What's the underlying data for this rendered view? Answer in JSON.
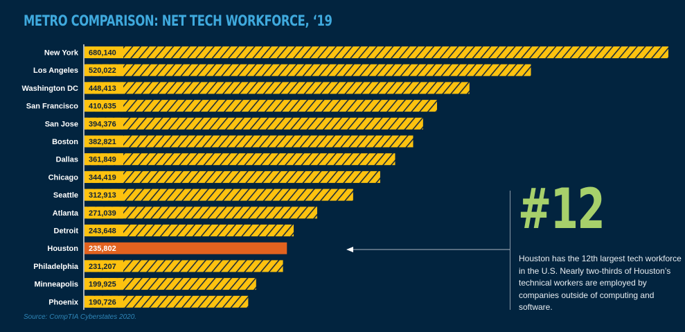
{
  "chart_data": {
    "type": "bar",
    "orientation": "horizontal",
    "title": "METRO COMPARISON: NET TECH WORKFORCE, ‘19",
    "xlabel": "",
    "ylabel": "",
    "categories": [
      "New York",
      "Los Angeles",
      "Washington DC",
      "San Francisco",
      "San Jose",
      "Boston",
      "Dallas",
      "Chicago",
      "Seattle",
      "Atlanta",
      "Detroit",
      "Houston",
      "Philadelphia",
      "Minneapolis",
      "Phoenix"
    ],
    "values": [
      680140,
      520022,
      448413,
      410635,
      394376,
      382821,
      361849,
      344419,
      312913,
      271039,
      243648,
      235802,
      231207,
      199925,
      190726
    ],
    "value_labels": [
      "680,140",
      "520,022",
      "448,413",
      "410,635",
      "394,376",
      "382,821",
      "361,849",
      "344,419",
      "312,913",
      "271,039",
      "243,648",
      "235,802",
      "231,207",
      "199,925",
      "190,726"
    ],
    "highlight": "Houston",
    "xlim": [
      0,
      680140
    ],
    "grid": false,
    "colors": {
      "bar": "#fdc20f",
      "stripe": "#1c2b3a",
      "highlight": "#e2621f",
      "background": "#02243f",
      "title": "#3fa9dd",
      "rank": "#a7d06b"
    }
  },
  "callout": {
    "rank": "#12",
    "text": "Houston has the 12th largest tech workforce in the U.S. Nearly two-thirds of Houston’s technical workers are employed by companies outside of computing and software."
  },
  "source": "Source: CompTIA Cyberstates 2020."
}
